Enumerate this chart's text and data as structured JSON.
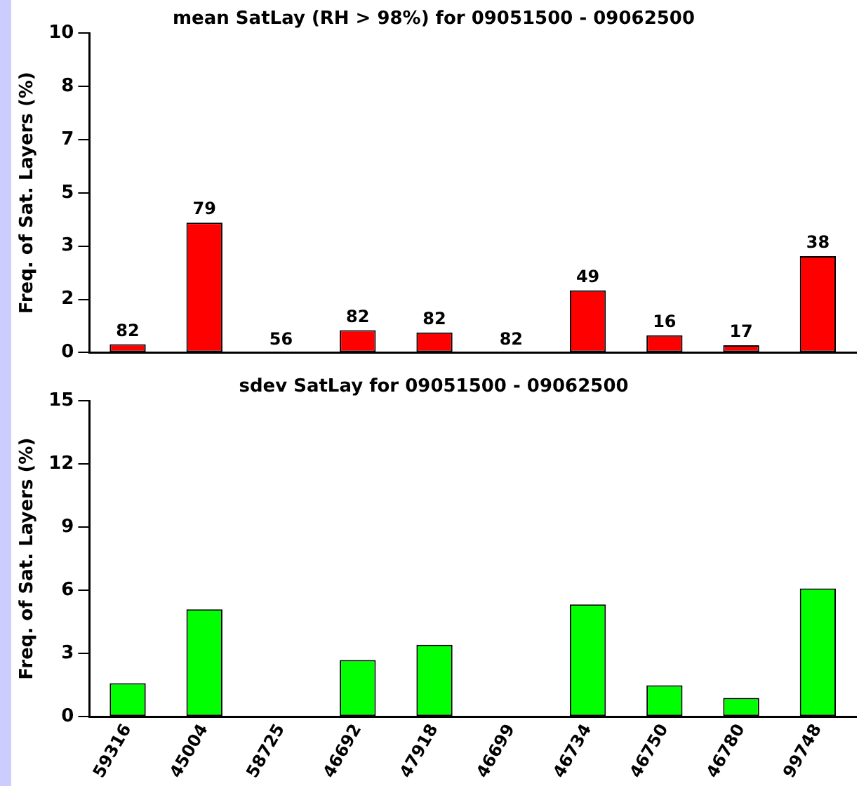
{
  "chart_data": [
    {
      "type": "bar",
      "title": "mean SatLay (RH > 98%) for 09051500 - 09062500",
      "ylabel": "Freq. of Sat. Layers (%)",
      "categories": [
        "59316",
        "45004",
        "58725",
        "46692",
        "47918",
        "46699",
        "46734",
        "46750",
        "46780",
        "99748"
      ],
      "series": [
        {
          "color": "#ff0000",
          "values": [
            0.26,
            4.07,
            0,
            0.7,
            0.63,
            0,
            1.95,
            0.54,
            0.23,
            3.02
          ]
        }
      ],
      "annotations": [
        {
          "text": "82",
          "x": "59316",
          "y": 0.26
        },
        {
          "text": "79",
          "x": "45004",
          "y": 4.07
        },
        {
          "text": "56",
          "x": "58725",
          "y": 0
        },
        {
          "text": "82",
          "x": "46692",
          "y": 0.7
        },
        {
          "text": "82",
          "x": "47918",
          "y": 0.63
        },
        {
          "text": "82",
          "x": "46699",
          "y": 0
        },
        {
          "text": "49",
          "x": "46734",
          "y": 1.95
        },
        {
          "text": "16",
          "x": "46750",
          "y": 0.54
        },
        {
          "text": "17",
          "x": "46780",
          "y": 0.23
        },
        {
          "text": "38",
          "x": "99748",
          "y": 3.02
        }
      ],
      "ylim": [
        0,
        10
      ],
      "yticks": [
        0,
        {
          "value": 1.667,
          "label": "2"
        },
        {
          "value": 3.333,
          "label": "3"
        },
        5,
        {
          "value": 6.667,
          "label": "7"
        },
        {
          "value": 8.333,
          "label": "8"
        },
        10
      ],
      "tick_labels": "y",
      "grid": false,
      "legend": false
    },
    {
      "type": "bar",
      "title": "sdev SatLay for 09051500 - 09062500",
      "ylabel": "Freq. of Sat. Layers (%)",
      "categories": [
        "59316",
        "45004",
        "58725",
        "46692",
        "47918",
        "46699",
        "46734",
        "46750",
        "46780",
        "99748"
      ],
      "series": [
        {
          "color": "#00ff00",
          "values": [
            1.59,
            5.1,
            0,
            2.69,
            3.42,
            0,
            5.33,
            1.49,
            0.89,
            6.09
          ]
        }
      ],
      "ylim": [
        0,
        15
      ],
      "yticks": [
        0,
        3,
        6,
        9,
        12,
        15
      ],
      "grid": false,
      "legend": false
    }
  ]
}
